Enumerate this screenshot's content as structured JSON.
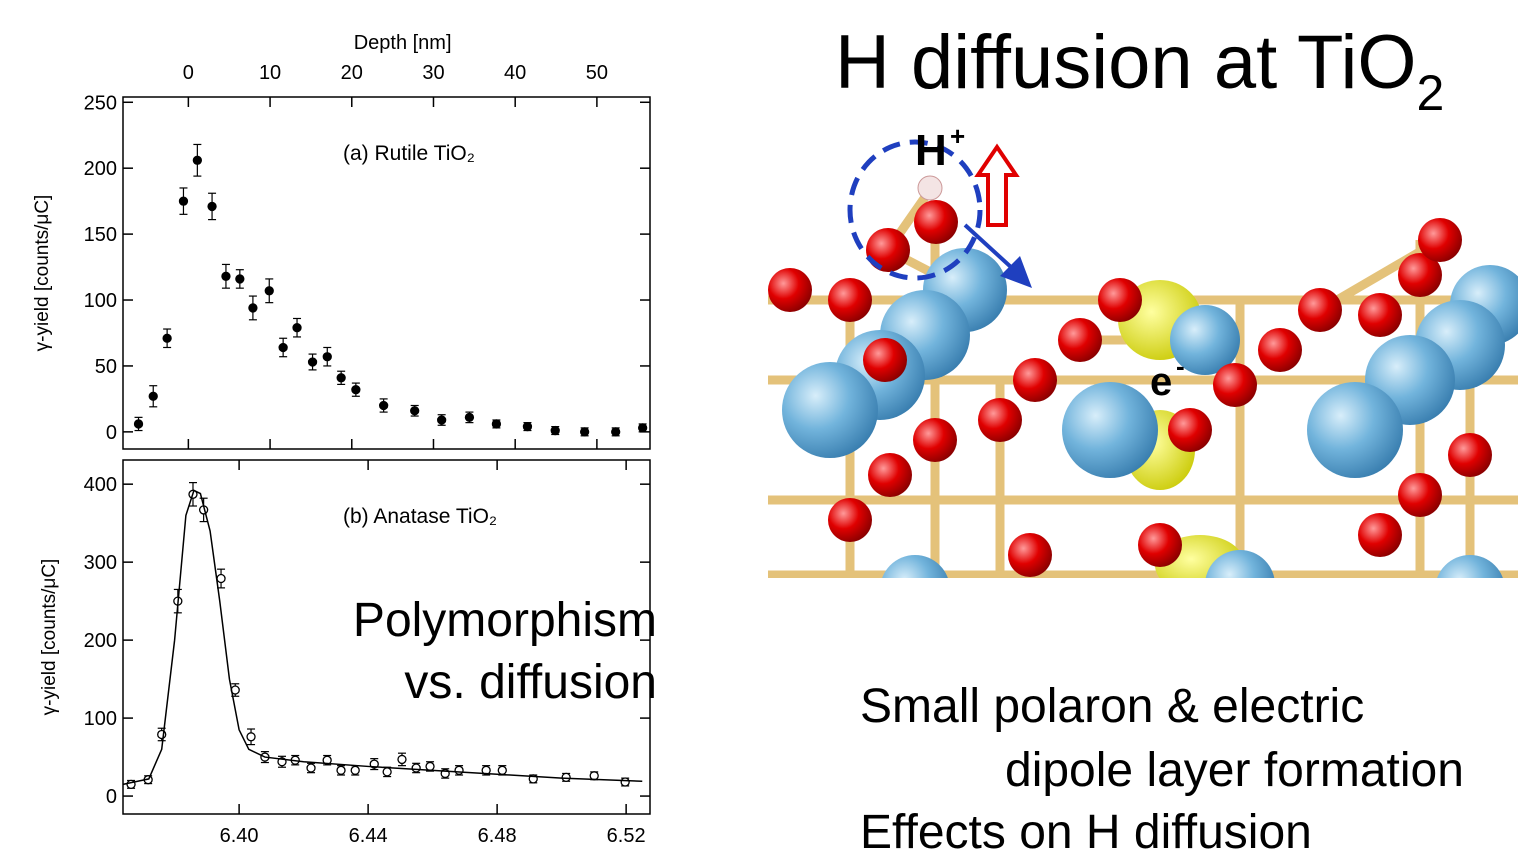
{
  "title": "H diffusion at TiO",
  "title_subscript": "2",
  "annotation": [
    "Polymorphism",
    "vs. diffusion"
  ],
  "diagram": {
    "hydrogen": "H",
    "hydrogen_charge": "+",
    "electron": "e",
    "electron_charge": "-"
  },
  "bullets": [
    "Small polaron & electric",
    "dipole layer formation",
    "Effects on H diffusion"
  ],
  "chart_data": [
    {
      "type": "scatter",
      "annotation": "(a) Rutile TiO₂",
      "xlabel": "Depth [nm]",
      "ylabel": "γ-yield [counts/μC]",
      "xaxis_position": "top",
      "xlim": [
        -8,
        56.5
      ],
      "xticks": [
        0,
        10,
        20,
        30,
        40,
        50
      ],
      "ylim": [
        -13,
        254
      ],
      "yticks": [
        0,
        50,
        100,
        150,
        200,
        250
      ],
      "series": [
        {
          "color": "#000000",
          "marker": "filled",
          "x": [
            -6.1,
            -4.3,
            -2.6,
            -0.6,
            1.1,
            2.9,
            4.6,
            6.3,
            7.9,
            9.9,
            11.6,
            13.3,
            15.2,
            17.0,
            18.7,
            20.5,
            23.9,
            27.7,
            31.0,
            34.4,
            37.7,
            41.5,
            44.9,
            48.5,
            52.3,
            55.6
          ],
          "values": [
            6,
            27,
            71,
            175,
            206,
            171,
            118,
            116,
            94,
            107,
            64,
            79,
            53,
            57,
            41,
            32,
            20,
            16,
            9,
            11,
            6,
            4,
            1,
            0,
            0,
            3
          ],
          "errors": [
            5,
            8,
            7,
            10,
            12,
            10,
            9,
            7,
            9,
            9,
            7,
            7,
            6,
            7,
            5,
            5,
            5,
            4,
            4,
            4,
            3,
            3,
            3,
            3,
            3,
            3
          ]
        }
      ]
    },
    {
      "type": "scatter",
      "annotation": "(b) Anatase TiO₂",
      "ylabel": "γ-yield [counts/μC]",
      "xaxis_position": "bottom",
      "xlim": [
        6.364,
        6.5274
      ],
      "xticks": [
        {
          "value": 6.4,
          "label": "6.40"
        },
        6.44,
        6.48,
        6.52
      ],
      "ylim": [
        -23,
        431
      ],
      "yticks": [
        0,
        100,
        200,
        300,
        400
      ],
      "series": [
        {
          "color": "#000000",
          "marker": "open",
          "x": [
            6.3665,
            6.3718,
            6.376,
            6.381,
            6.3857,
            6.389,
            6.3944,
            6.3988,
            6.4037,
            6.408,
            6.4133,
            6.4174,
            6.4223,
            6.4273,
            6.4316,
            6.436,
            6.4419,
            6.4459,
            6.4505,
            6.4549,
            6.4592,
            6.4639,
            6.4682,
            6.4766,
            6.4816,
            6.4912,
            6.5014,
            6.5101,
            6.5197
          ],
          "values": [
            15,
            21,
            79,
            250,
            387,
            367,
            279,
            136,
            76,
            50,
            44,
            46,
            36,
            46,
            33,
            33,
            41,
            31,
            47,
            36,
            38,
            29,
            33,
            33,
            33,
            22,
            24,
            26,
            18
          ],
          "errors": [
            5,
            5,
            8,
            15,
            15,
            15,
            12,
            8,
            10,
            7,
            7,
            6,
            6,
            6,
            6,
            6,
            7,
            6,
            8,
            6,
            6,
            6,
            6,
            6,
            6,
            5,
            5,
            5,
            5
          ]
        },
        {
          "color": "#000000",
          "marker": "none",
          "x": [
            6.364,
            6.372,
            6.376,
            6.38,
            6.3835,
            6.386,
            6.388,
            6.391,
            6.394,
            6.397,
            6.4,
            6.403,
            6.408,
            6.42,
            6.44,
            6.46,
            6.48,
            6.5,
            6.525
          ],
          "values": [
            15,
            22,
            60,
            200,
            360,
            392,
            388,
            340,
            250,
            150,
            85,
            60,
            50,
            44,
            38,
            33,
            28,
            23,
            19
          ]
        }
      ]
    }
  ]
}
